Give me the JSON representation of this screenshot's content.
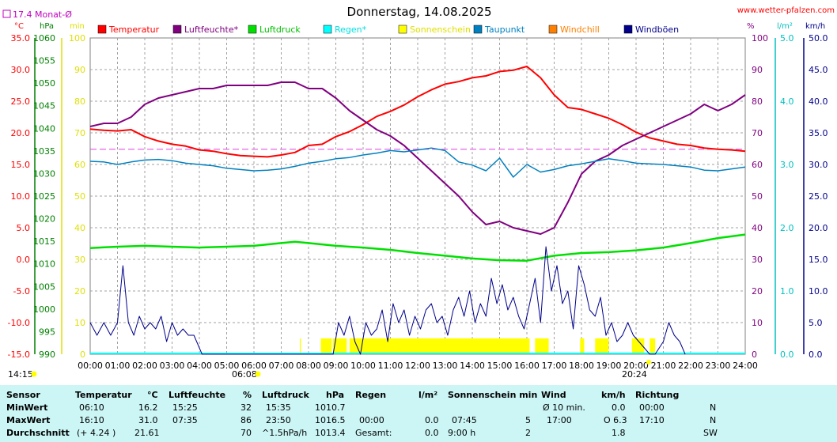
{
  "header": {
    "title": "Donnerstag, 14.08.2025",
    "site": "www.wetter-pfalzen.com",
    "monthly_avg_label": "17.4 Monat-Ø",
    "monthly_avg_color": "#c000c0"
  },
  "colors": {
    "temperature": "#ff0000",
    "humidity": "#800080",
    "pressure": "#00e000",
    "rain": "#00ffff",
    "sunshine": "#ffff00",
    "dewpoint": "#0080c0",
    "windchill": "#ff8000",
    "gusts": "#00008b",
    "temp_axis": "#ff0000",
    "hpa_axis": "#008000",
    "min_axis": "#e0e000",
    "pct_axis": "#800080",
    "rain_axis": "#00c0c0",
    "wind_axis": "#00008b"
  },
  "chart_data": {
    "type": "line",
    "title": "Donnerstag, 14.08.2025",
    "x_ticks": [
      "00:00",
      "01:00",
      "02:00",
      "03:00",
      "04:00",
      "05:00",
      "06:00",
      "07:00",
      "08:00",
      "09:00",
      "10:00",
      "11:00",
      "12:00",
      "13:00",
      "14:00",
      "15:00",
      "16:00",
      "17:00",
      "18:00",
      "19:00",
      "20:00",
      "21:00",
      "22:00",
      "23:00",
      "24:00"
    ],
    "x_range_hours": [
      0,
      24
    ],
    "grid": true,
    "legend": [
      "Temperatur",
      "Luftfeuchte*",
      "Luftdruck",
      "Regen*",
      "Sonnenschein",
      "Taupunkt",
      "Windchill",
      "Windböen"
    ],
    "legend_position": "top",
    "axes": {
      "temp": {
        "unit": "°C",
        "ticks": [
          "35.0",
          "30.0",
          "25.0",
          "20.0",
          "15.0",
          "10.0",
          "5.0",
          "0.0",
          "-5.0",
          "-10.0",
          "-15.0"
        ],
        "range": [
          -15,
          35
        ]
      },
      "pressure": {
        "unit": "hPa",
        "ticks": [
          "1060",
          "1055",
          "1050",
          "1045",
          "1040",
          "1035",
          "1030",
          "1025",
          "1020",
          "1015",
          "1010",
          "1005",
          "1000",
          "995",
          "990"
        ],
        "range": [
          990,
          1060
        ]
      },
      "minutes": {
        "unit": "min",
        "ticks": [
          "100",
          "90",
          "80",
          "70",
          "60",
          "50",
          "40",
          "30",
          "20",
          "10",
          "0"
        ],
        "range": [
          0,
          100
        ]
      },
      "humidity": {
        "unit": "%",
        "ticks": [
          "100",
          "90",
          "80",
          "70",
          "60",
          "50",
          "40",
          "30",
          "20",
          "10",
          "0"
        ],
        "range": [
          0,
          100
        ]
      },
      "rain": {
        "unit": "l/m²",
        "ticks": [
          "5.0",
          "4.0",
          "3.0",
          "2.0",
          "1.0",
          "0.0"
        ],
        "range": [
          0,
          5
        ]
      },
      "wind": {
        "unit": "km/h",
        "ticks": [
          "50.0",
          "45.0",
          "40.0",
          "35.0",
          "30.0",
          "25.0",
          "20.0",
          "15.0",
          "10.0",
          "5.0",
          "0.0"
        ],
        "range": [
          0,
          50
        ]
      }
    },
    "monthly_avg_temp": 17.4,
    "series": [
      {
        "name": "Temperatur",
        "axis": "temp",
        "x": [
          0,
          0.5,
          1,
          1.5,
          2,
          2.5,
          3,
          3.5,
          4,
          4.5,
          5,
          5.5,
          6,
          6.5,
          7,
          7.5,
          8,
          8.5,
          9,
          9.5,
          10,
          10.5,
          11,
          11.5,
          12,
          12.5,
          13,
          13.5,
          14,
          14.5,
          15,
          15.5,
          16,
          16.5,
          17,
          17.5,
          18,
          18.5,
          19,
          19.5,
          20,
          20.5,
          21,
          21.5,
          22,
          22.5,
          23,
          23.5,
          24
        ],
        "y": [
          20.6,
          20.4,
          20.3,
          20.5,
          19.4,
          18.7,
          18.2,
          17.9,
          17.3,
          17.1,
          16.7,
          16.4,
          16.3,
          16.2,
          16.5,
          16.9,
          18.0,
          18.2,
          19.4,
          20.2,
          21.3,
          22.6,
          23.4,
          24.4,
          25.7,
          26.8,
          27.7,
          28.1,
          28.7,
          29.0,
          29.7,
          29.9,
          30.5,
          28.7,
          26.0,
          24.0,
          23.7,
          23.0,
          22.3,
          21.3,
          20.1,
          19.2,
          18.7,
          18.2,
          18.0,
          17.6,
          17.4,
          17.3,
          17.1
        ]
      },
      {
        "name": "Luftfeuchte*",
        "axis": "humidity",
        "x": [
          0,
          0.5,
          1,
          1.5,
          2,
          2.5,
          3,
          3.5,
          4,
          4.5,
          5,
          5.5,
          6,
          6.5,
          7,
          7.5,
          8,
          8.5,
          9,
          9.5,
          10,
          10.5,
          11,
          11.5,
          12,
          12.5,
          13,
          13.5,
          14,
          14.5,
          15,
          15.5,
          16,
          16.5,
          17,
          17.5,
          18,
          18.5,
          19,
          19.5,
          20,
          20.5,
          21,
          21.5,
          22,
          22.5,
          23,
          23.5,
          24
        ],
        "y": [
          72,
          73,
          73,
          75,
          79,
          81,
          82,
          83,
          84,
          84,
          85,
          85,
          85,
          85,
          86,
          86,
          84,
          84,
          81,
          77,
          74,
          71,
          69,
          66,
          62,
          58,
          54,
          50,
          45,
          41,
          42,
          40,
          39,
          38,
          40,
          48,
          57,
          61,
          63,
          66,
          68,
          70,
          72,
          74,
          76,
          79,
          77,
          79,
          82
        ]
      },
      {
        "name": "Luftdruck",
        "axis": "pressure",
        "x": [
          0,
          1,
          2,
          3,
          4,
          5,
          6,
          7,
          7.5,
          8,
          9,
          10,
          11,
          12,
          13,
          14,
          15,
          16,
          17,
          18,
          19,
          20,
          21,
          22,
          23,
          24
        ],
        "y": [
          1013.5,
          1013.8,
          1014.0,
          1013.8,
          1013.6,
          1013.8,
          1014.0,
          1014.6,
          1014.9,
          1014.6,
          1014.0,
          1013.6,
          1013.1,
          1012.4,
          1011.8,
          1011.2,
          1010.8,
          1010.7,
          1011.8,
          1012.4,
          1012.6,
          1013.0,
          1013.6,
          1014.6,
          1015.7,
          1016.5
        ]
      },
      {
        "name": "Taupunkt",
        "axis": "temp",
        "x": [
          0,
          0.5,
          1,
          1.5,
          2,
          2.5,
          3,
          3.5,
          4,
          4.5,
          5,
          5.5,
          6,
          6.5,
          7,
          7.5,
          8,
          8.5,
          9,
          9.5,
          10,
          10.5,
          11,
          11.5,
          12,
          12.5,
          13,
          13.5,
          14,
          14.5,
          15,
          15.5,
          16,
          16.5,
          17,
          17.5,
          18,
          18.5,
          19,
          19.5,
          20,
          20.5,
          21,
          21.5,
          22,
          22.5,
          23,
          23.5,
          24
        ],
        "y": [
          15.5,
          15.4,
          15.0,
          15.4,
          15.7,
          15.8,
          15.6,
          15.2,
          15.0,
          14.8,
          14.4,
          14.2,
          14.0,
          14.1,
          14.3,
          14.7,
          15.2,
          15.5,
          15.9,
          16.1,
          16.5,
          16.8,
          17.2,
          17.0,
          17.3,
          17.6,
          17.2,
          15.4,
          14.9,
          14.0,
          16.0,
          13.0,
          15.0,
          13.8,
          14.2,
          14.8,
          15.1,
          15.5,
          15.9,
          15.6,
          15.2,
          15.1,
          15.0,
          14.8,
          14.6,
          14.1,
          14.0,
          14.3,
          14.6
        ]
      },
      {
        "name": "Windböen",
        "axis": "wind",
        "x": [
          0,
          0.25,
          0.5,
          0.75,
          1,
          1.2,
          1.4,
          1.6,
          1.8,
          2,
          2.2,
          2.4,
          2.6,
          2.8,
          3,
          3.2,
          3.4,
          3.6,
          3.8,
          4,
          4.1,
          4.2,
          8.9,
          9.1,
          9.3,
          9.5,
          9.7,
          9.9,
          10.1,
          10.3,
          10.5,
          10.7,
          10.9,
          11.1,
          11.3,
          11.5,
          11.7,
          11.9,
          12.1,
          12.3,
          12.5,
          12.7,
          12.9,
          13.1,
          13.3,
          13.5,
          13.7,
          13.9,
          14.1,
          14.3,
          14.5,
          14.7,
          14.9,
          15.1,
          15.3,
          15.5,
          15.7,
          15.9,
          16.1,
          16.3,
          16.5,
          16.7,
          16.9,
          17.1,
          17.3,
          17.5,
          17.7,
          17.9,
          18.1,
          18.3,
          18.5,
          18.7,
          18.9,
          19.1,
          19.3,
          19.5,
          19.7,
          19.9,
          20.1,
          20.3,
          20.5,
          20.7,
          21.0,
          21.2,
          21.4,
          21.6,
          21.8
        ],
        "y": [
          5,
          3,
          5,
          3,
          5,
          14,
          5,
          3,
          6,
          4,
          5,
          4,
          6,
          2,
          5,
          3,
          4,
          3,
          3,
          1,
          0,
          0,
          0,
          5,
          3,
          6,
          2,
          0,
          5,
          3,
          4,
          7,
          2,
          8,
          5,
          7,
          3,
          6,
          4,
          7,
          8,
          5,
          6,
          3,
          7,
          9,
          6,
          10,
          5,
          8,
          6,
          12,
          8,
          11,
          7,
          9,
          6,
          4,
          8,
          12,
          5,
          17,
          10,
          14,
          8,
          10,
          4,
          14,
          11,
          7,
          6,
          9,
          3,
          5,
          2,
          3,
          5,
          3,
          2,
          1,
          0,
          0,
          2,
          5,
          3,
          2,
          0
        ]
      }
    ],
    "sunshine_periods": [
      [
        7.68,
        7.72
      ],
      [
        8.45,
        8.85
      ],
      [
        8.9,
        9.4
      ],
      [
        9.5,
        16.1
      ],
      [
        16.3,
        16.8
      ],
      [
        17.95,
        18.1
      ],
      [
        18.5,
        19.0
      ],
      [
        19.85,
        20.3
      ],
      [
        20.5,
        20.7
      ]
    ],
    "sunrise": "06:08",
    "sunset": "20:24",
    "left_time_marker": "14:15"
  },
  "stats": {
    "headers": {
      "sensor": "Sensor",
      "temperatur": "Temperatur",
      "temp_unit": "°C",
      "luftfeuchte": "Luftfeuchte",
      "hum_unit": "%",
      "luftdruck": "Luftdruck",
      "press_unit": "hPa",
      "regen": "Regen",
      "rain_unit": "l/m²",
      "sonnenschein": "Sonnenschein min",
      "wind": "Wind",
      "wind_unit": "km/h",
      "richtung": "Richtung"
    },
    "rows": [
      {
        "label": "MinWert",
        "t_time": "06:10",
        "t_val": "16.2",
        "h_time": "15:25",
        "h_val": "32",
        "p_time": "15:35",
        "p_val": "1010.7",
        "r_time": "",
        "r_val": "",
        "s_time": "",
        "s_val": "",
        "w_label": "Ø 10 min.",
        "w_val": "0.0",
        "d_time": "00:00",
        "d_val": "N"
      },
      {
        "label": "MaxWert",
        "t_time": "16:10",
        "t_val": "31.0",
        "h_time": "07:35",
        "h_val": "86",
        "p_time": "23:50",
        "p_val": "1016.5",
        "r_time": "00:00",
        "r_val": "0.0",
        "s_time": "07:45",
        "s_val": "5",
        "w_label": "17:00",
        "w_val": "O 6.3",
        "d_time": "17:10",
        "d_val": "N"
      },
      {
        "label": "Durchschnitt",
        "t_time": "(+ 4.24 )",
        "t_val": "21.61",
        "h_time": "",
        "h_val": "70",
        "p_time": "^1.5hPa/h",
        "p_val": "1013.4",
        "r_time": "Gesamt:",
        "r_val": "0.0",
        "s_time": "9:00 h",
        "s_val": "2",
        "w_label": "",
        "w_val": "1.8",
        "d_time": "",
        "d_val": "SW"
      }
    ]
  }
}
